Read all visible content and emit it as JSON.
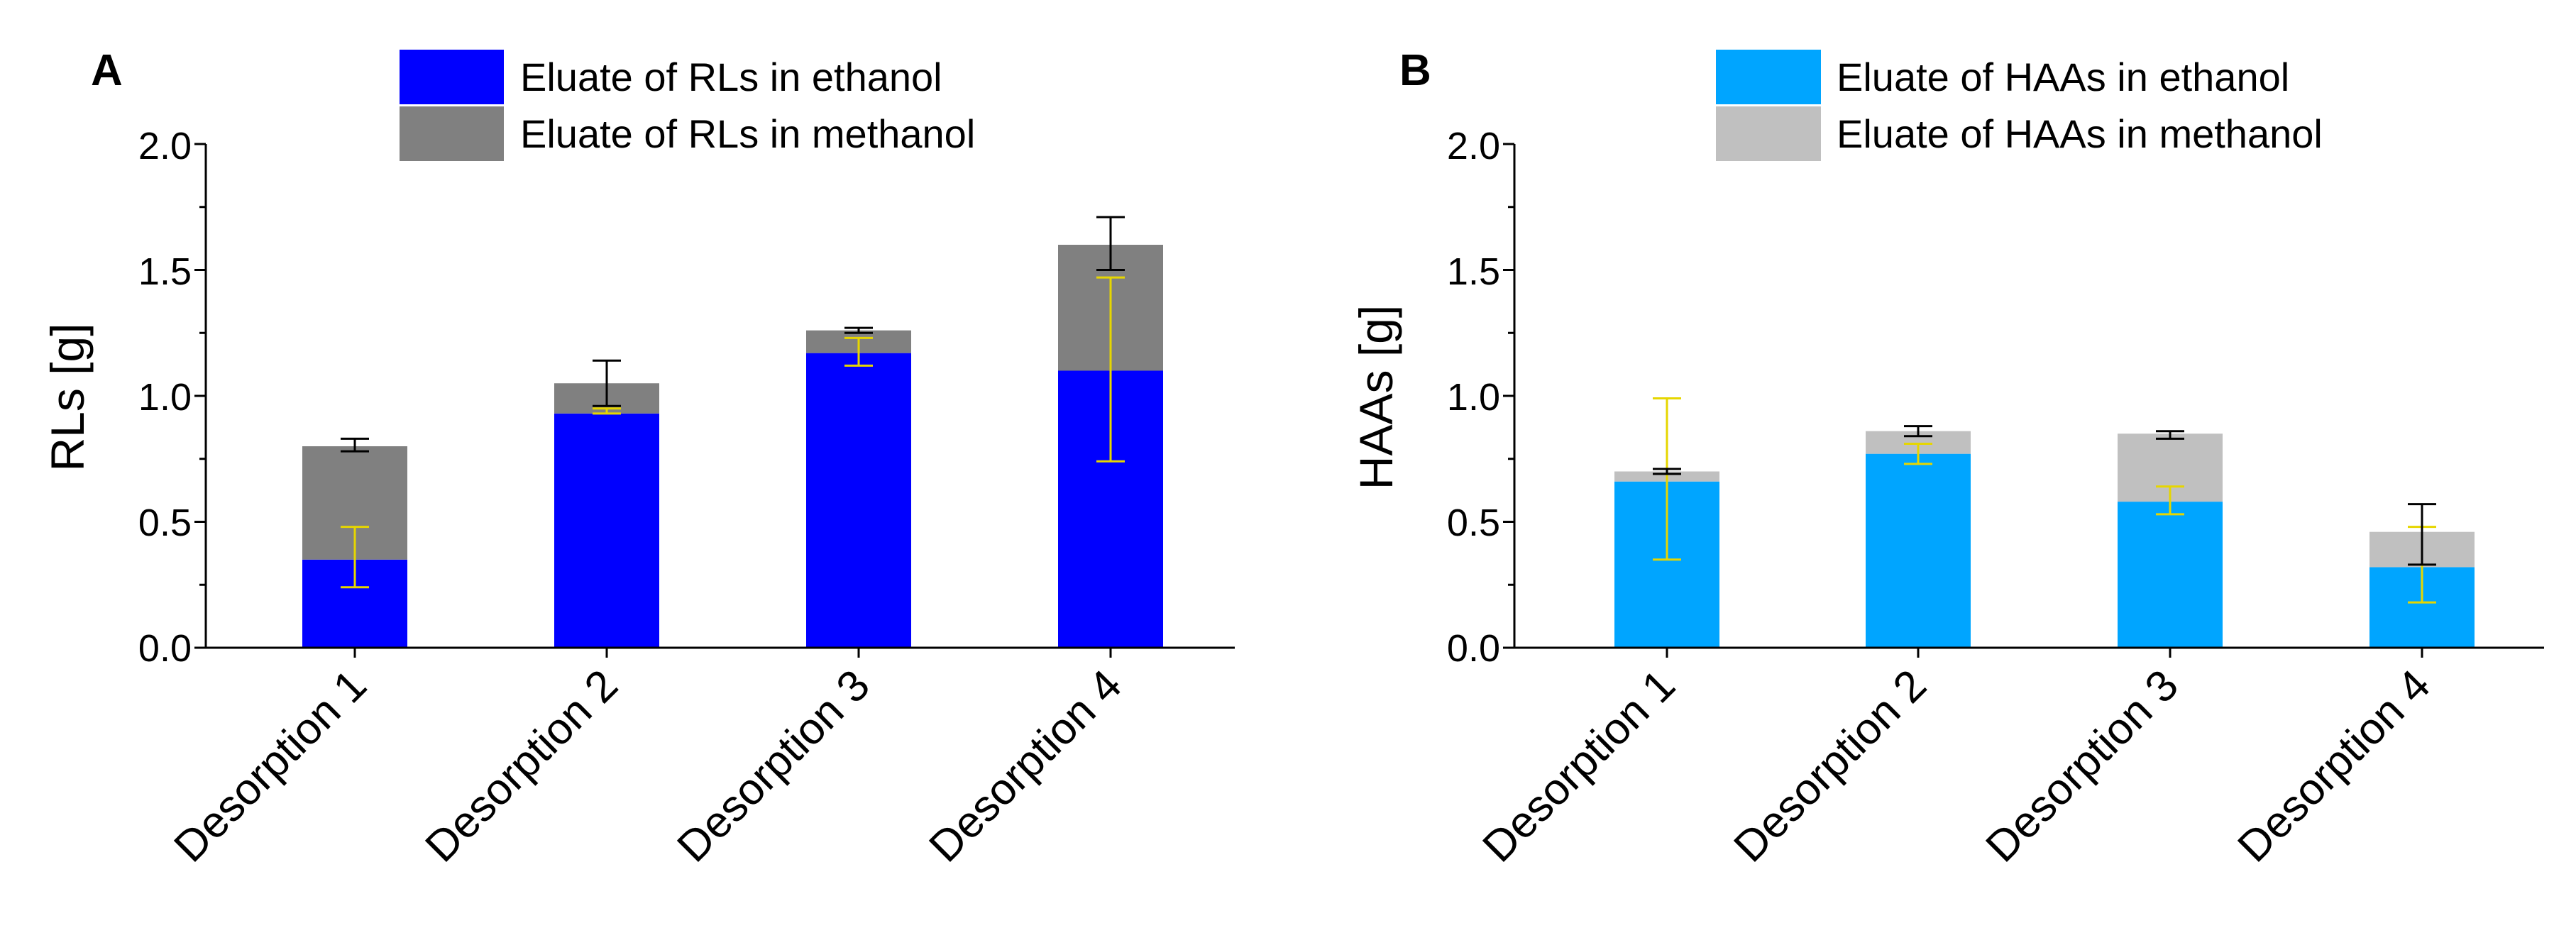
{
  "colors": {
    "rl_ethanol": "#0000ff",
    "rl_methanol": "#808080",
    "haa_ethanol": "#00a5ff",
    "haa_methanol": "#c0c0c0",
    "ethanol_error": "#e6d600",
    "methanol_error": "#000000"
  },
  "chart_data": [
    {
      "panel": "A",
      "type": "bar",
      "stacked": true,
      "ylabel": "RLs [g]",
      "ylim": [
        0,
        2.0
      ],
      "yticks": [
        "0.0",
        "0.5",
        "1.0",
        "1.5",
        "2.0"
      ],
      "categories": [
        "Desorption 1",
        "Desorption 2",
        "Desorption 3",
        "Desorption 4"
      ],
      "legend_position": "top-center",
      "series": [
        {
          "name": "Eluate of RLs in ethanol",
          "color_key": "rl_ethanol",
          "values": [
            0.35,
            0.93,
            1.17,
            1.1
          ],
          "error_low": [
            0.24,
            0.93,
            1.12,
            0.74
          ],
          "error_high": [
            0.48,
            0.95,
            1.23,
            1.47
          ]
        },
        {
          "name": "Eluate of RLs in methanol",
          "color_key": "rl_methanol",
          "values": [
            0.45,
            0.12,
            0.09,
            0.5
          ],
          "cumulative_error_low": [
            0.78,
            0.96,
            1.25,
            1.5
          ],
          "cumulative_error_high": [
            0.83,
            1.14,
            1.27,
            1.71
          ]
        }
      ]
    },
    {
      "panel": "B",
      "type": "bar",
      "stacked": true,
      "ylabel": "HAAs [g]",
      "ylim": [
        0,
        2.0
      ],
      "yticks": [
        "0.0",
        "0.5",
        "1.0",
        "1.5",
        "2.0"
      ],
      "categories": [
        "Desorption 1",
        "Desorption 2",
        "Desorption 3",
        "Desorption 4"
      ],
      "legend_position": "top-center",
      "series": [
        {
          "name": "Eluate of HAAs in ethanol",
          "color_key": "haa_ethanol",
          "values": [
            0.66,
            0.77,
            0.58,
            0.32
          ],
          "error_low": [
            0.35,
            0.73,
            0.53,
            0.18
          ],
          "error_high": [
            0.99,
            0.81,
            0.64,
            0.48
          ]
        },
        {
          "name": "Eluate of HAAs in methanol",
          "color_key": "haa_methanol",
          "values": [
            0.04,
            0.09,
            0.27,
            0.14
          ],
          "cumulative_error_low": [
            0.69,
            0.84,
            0.83,
            0.33
          ],
          "cumulative_error_high": [
            0.71,
            0.88,
            0.86,
            0.57
          ]
        }
      ]
    }
  ]
}
